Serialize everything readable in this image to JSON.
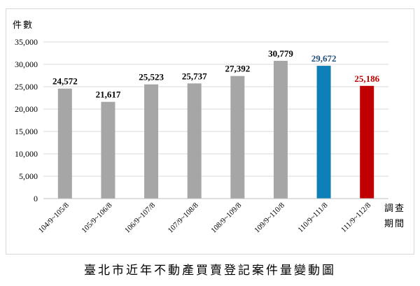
{
  "chart_data": {
    "type": "bar",
    "title": "",
    "ylabel": "件數",
    "xlabel": "調查期間",
    "ylim": [
      0,
      35000
    ],
    "yticks": [
      0,
      5000,
      10000,
      15000,
      20000,
      25000,
      30000,
      35000
    ],
    "ytick_labels": [
      "0",
      "5,000",
      "10,000",
      "15,000",
      "20,000",
      "25,000",
      "30,000",
      "35,000"
    ],
    "grid": true,
    "legend": "none",
    "categories": [
      "104/9~105/8",
      "105/9~106/8",
      "106/9~107/8",
      "107/9~108/8",
      "108/9~109/8",
      "109/9~110/8",
      "110/9~111/8",
      "111/9~112/8"
    ],
    "values": [
      24572,
      21617,
      25523,
      25737,
      27392,
      30779,
      29672,
      25186
    ],
    "value_labels": [
      "24,572",
      "21,617",
      "25,523",
      "25,737",
      "27,392",
      "30,779",
      "29,672",
      "25,186"
    ],
    "colors": [
      "#a6a6a6",
      "#a6a6a6",
      "#a6a6a6",
      "#a6a6a6",
      "#a6a6a6",
      "#a6a6a6",
      "#0f7fb8",
      "#c00000"
    ],
    "label_colors": [
      "#000000",
      "#000000",
      "#000000",
      "#000000",
      "#000000",
      "#000000",
      "#1f4e79",
      "#c00000"
    ]
  },
  "caption": "臺北市近年不動產買賣登記案件量變動圖"
}
